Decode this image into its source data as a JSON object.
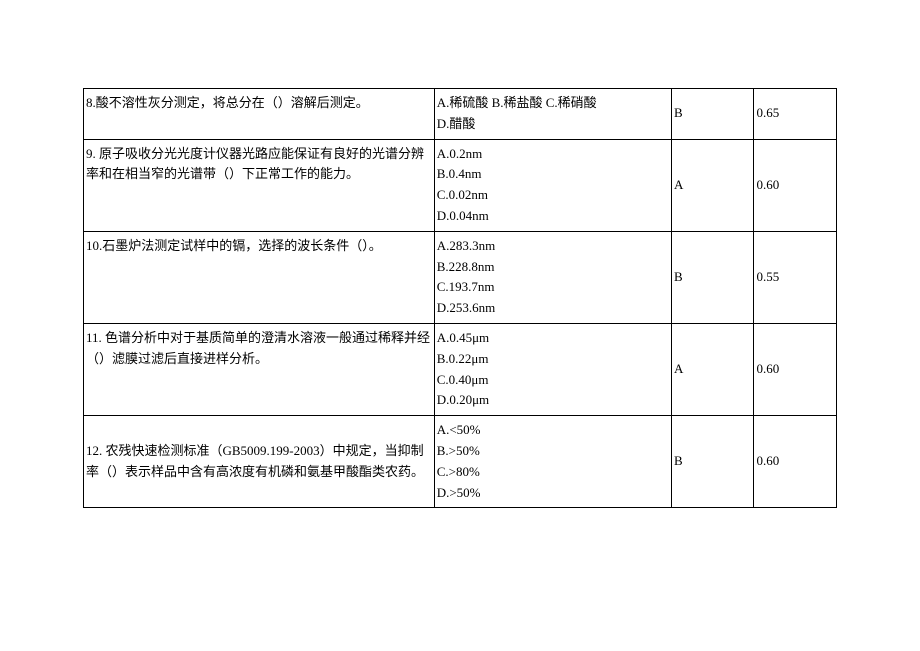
{
  "table": {
    "columns": {
      "question_width": 340,
      "options_width": 230,
      "answer_width": 80,
      "score_width": 80
    },
    "rows": [
      {
        "question": "8.酸不溶性灰分测定，将总分在（）溶解后测定。",
        "options": "A.稀硫酸 B.稀盐酸 C.稀硝酸\nD.醋酸",
        "answer": "B",
        "score": "0.65"
      },
      {
        "question": "9. 原子吸收分光光度计仪器光路应能保证有良好的光谱分辨率和在相当窄的光谱带（）下正常工作的能力。",
        "options": "A.0.2nm\nB.0.4nm\nC.0.02nm\nD.0.04nm",
        "answer": "A",
        "score": "0.60"
      },
      {
        "question": "10.石墨炉法测定试样中的镉，选择的波长条件（）。",
        "options": "A.283.3nm\nB.228.8nm\nC.193.7nm\nD.253.6nm",
        "answer": "B",
        "score": "0.55"
      },
      {
        "question": "11. 色谱分析中对于基质简单的澄清水溶液一般通过稀释并经（）滤膜过滤后直接进样分析。",
        "options": "A.0.45μm\nB.0.22μm\nC.0.40μm\nD.0.20μm",
        "answer": "A",
        "score": "0.60"
      },
      {
        "question": "12. 农残快速检测标准（GB5009.199-2003）中规定，当抑制率（）表示样品中含有高浓度有机磷和氨基甲酸酯类农药。",
        "options": "A.<50%\nB.>50%\nC.>80%\nD.>50%",
        "answer": "B",
        "score": "0.60"
      }
    ]
  },
  "style": {
    "font_family": "SimSun",
    "font_size": 13,
    "border_color": "#000000",
    "background_color": "#ffffff",
    "text_color": "#000000"
  }
}
